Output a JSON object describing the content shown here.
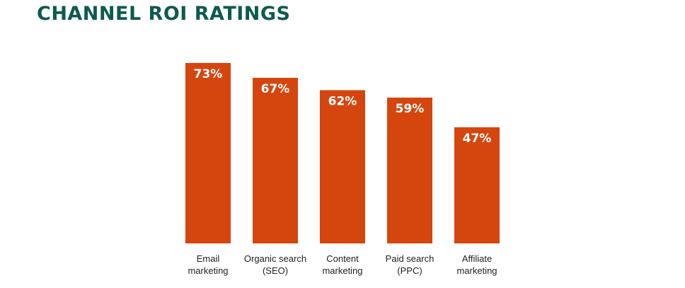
{
  "chart_data": {
    "type": "bar",
    "title": "CHANNEL ROI RATINGS",
    "categories": [
      [
        "Email",
        "marketing"
      ],
      [
        "Organic search",
        "(SEO)"
      ],
      [
        "Content",
        "marketing"
      ],
      [
        "Paid search",
        "(PPC)"
      ],
      [
        "Affiliate",
        "marketing"
      ]
    ],
    "values": [
      73,
      67,
      62,
      59,
      47
    ],
    "value_labels": [
      "73%",
      "67%",
      "62%",
      "59%",
      "47%"
    ],
    "value_unit": "%",
    "bar_color": "#d5460f",
    "grid": false,
    "legend": "none"
  },
  "colors": {
    "title": "#0e5a4e",
    "bar": "#d5460f",
    "bar_label": "#ffffff",
    "category_label": "#222222"
  }
}
